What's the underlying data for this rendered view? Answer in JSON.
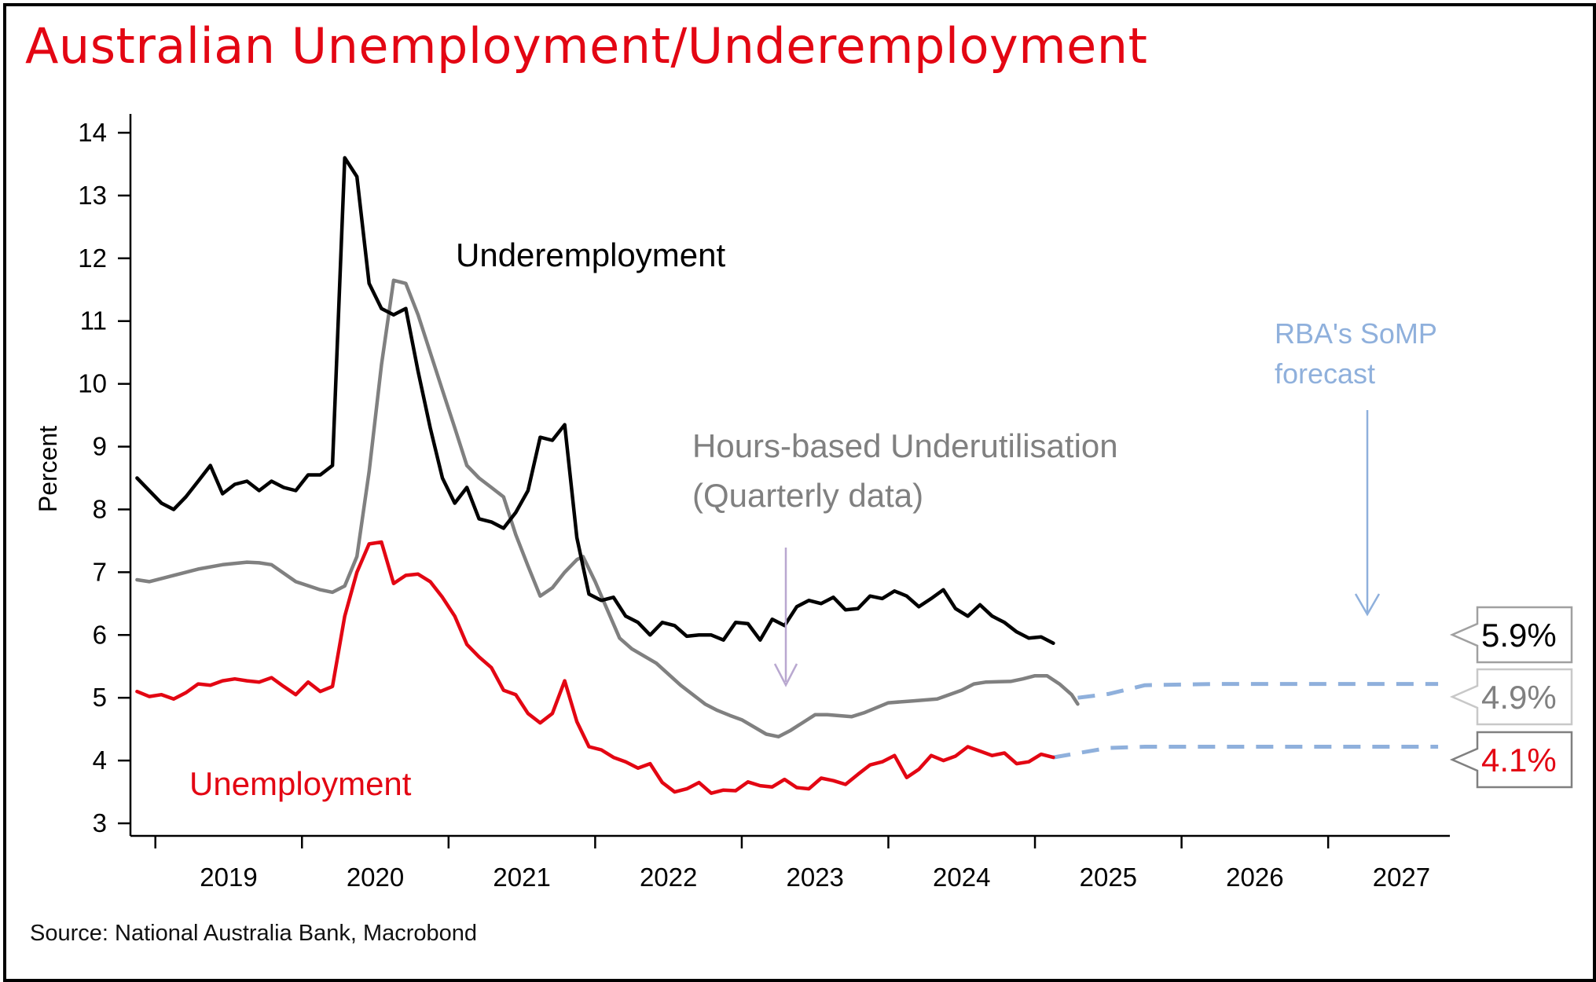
{
  "title": "Australian Unemployment/Underemployment",
  "source": "Source: National Australia Bank, Macrobond",
  "colors": {
    "title": "#e30613",
    "underemployment": "#000000",
    "underutilisation": "#808080",
    "unemployment": "#e30613",
    "forecast": "#8fb0dc",
    "annotation_arrow": "#b9a8d0"
  },
  "chart_data": {
    "type": "line",
    "ylabel": "Percent",
    "xlim": [
      2018.83,
      2027.83
    ],
    "ylim": [
      2.8,
      14.3
    ],
    "y_ticks": [
      3,
      4,
      5,
      6,
      7,
      8,
      9,
      10,
      11,
      12,
      13,
      14
    ],
    "x_ticks": [
      "2019",
      "2020",
      "2021",
      "2022",
      "2023",
      "2024",
      "2025",
      "2026",
      "2027"
    ],
    "grid": false,
    "legend": "none (inline labels)",
    "series": [
      {
        "name": "Underemployment",
        "key": "underemployment",
        "color": "#000000",
        "points": [
          [
            2018.875,
            8.5
          ],
          [
            2018.958,
            8.3
          ],
          [
            2019.042,
            8.1
          ],
          [
            2019.125,
            8.0
          ],
          [
            2019.208,
            8.2
          ],
          [
            2019.292,
            8.45
          ],
          [
            2019.375,
            8.7
          ],
          [
            2019.458,
            8.25
          ],
          [
            2019.542,
            8.4
          ],
          [
            2019.625,
            8.45
          ],
          [
            2019.708,
            8.3
          ],
          [
            2019.792,
            8.45
          ],
          [
            2019.875,
            8.35
          ],
          [
            2019.958,
            8.3
          ],
          [
            2020.042,
            8.55
          ],
          [
            2020.125,
            8.55
          ],
          [
            2020.208,
            8.7
          ],
          [
            2020.292,
            13.6
          ],
          [
            2020.375,
            13.3
          ],
          [
            2020.458,
            11.6
          ],
          [
            2020.542,
            11.2
          ],
          [
            2020.625,
            11.1
          ],
          [
            2020.708,
            11.2
          ],
          [
            2020.792,
            10.2
          ],
          [
            2020.875,
            9.3
          ],
          [
            2020.958,
            8.5
          ],
          [
            2021.042,
            8.1
          ],
          [
            2021.125,
            8.35
          ],
          [
            2021.208,
            7.85
          ],
          [
            2021.292,
            7.8
          ],
          [
            2021.375,
            7.7
          ],
          [
            2021.458,
            7.95
          ],
          [
            2021.542,
            8.3
          ],
          [
            2021.625,
            9.15
          ],
          [
            2021.708,
            9.1
          ],
          [
            2021.792,
            9.35
          ],
          [
            2021.875,
            7.55
          ],
          [
            2021.958,
            6.65
          ],
          [
            2022.042,
            6.55
          ],
          [
            2022.125,
            6.6
          ],
          [
            2022.208,
            6.3
          ],
          [
            2022.292,
            6.2
          ],
          [
            2022.375,
            6.0
          ],
          [
            2022.458,
            6.2
          ],
          [
            2022.542,
            6.15
          ],
          [
            2022.625,
            5.98
          ],
          [
            2022.708,
            6.0
          ],
          [
            2022.792,
            6.0
          ],
          [
            2022.875,
            5.92
          ],
          [
            2022.958,
            6.2
          ],
          [
            2023.042,
            6.18
          ],
          [
            2023.125,
            5.92
          ],
          [
            2023.208,
            6.25
          ],
          [
            2023.292,
            6.15
          ],
          [
            2023.375,
            6.45
          ],
          [
            2023.458,
            6.55
          ],
          [
            2023.542,
            6.5
          ],
          [
            2023.625,
            6.6
          ],
          [
            2023.708,
            6.4
          ],
          [
            2023.792,
            6.42
          ],
          [
            2023.875,
            6.62
          ],
          [
            2023.958,
            6.58
          ],
          [
            2024.042,
            6.7
          ],
          [
            2024.125,
            6.62
          ],
          [
            2024.208,
            6.45
          ],
          [
            2024.292,
            6.58
          ],
          [
            2024.375,
            6.72
          ],
          [
            2024.458,
            6.42
          ],
          [
            2024.542,
            6.3
          ],
          [
            2024.625,
            6.48
          ],
          [
            2024.708,
            6.3
          ],
          [
            2024.792,
            6.2
          ],
          [
            2024.875,
            6.05
          ],
          [
            2024.958,
            5.95
          ],
          [
            2025.042,
            5.97
          ],
          [
            2025.125,
            5.87
          ]
        ]
      },
      {
        "name": "Hours-based Underutilisation (Quarterly data)",
        "key": "underutilisation",
        "color": "#808080",
        "points": [
          [
            2018.875,
            6.88
          ],
          [
            2018.958,
            6.85
          ],
          [
            2019.042,
            6.9
          ],
          [
            2019.125,
            6.95
          ],
          [
            2019.292,
            7.05
          ],
          [
            2019.458,
            7.12
          ],
          [
            2019.625,
            7.16
          ],
          [
            2019.708,
            7.15
          ],
          [
            2019.792,
            7.12
          ],
          [
            2019.958,
            6.85
          ],
          [
            2020.125,
            6.72
          ],
          [
            2020.208,
            6.68
          ],
          [
            2020.292,
            6.78
          ],
          [
            2020.375,
            7.25
          ],
          [
            2020.458,
            8.6
          ],
          [
            2020.542,
            10.3
          ],
          [
            2020.625,
            11.65
          ],
          [
            2020.708,
            11.6
          ],
          [
            2020.792,
            11.1
          ],
          [
            2020.875,
            10.5
          ],
          [
            2020.958,
            9.9
          ],
          [
            2021.042,
            9.3
          ],
          [
            2021.125,
            8.7
          ],
          [
            2021.208,
            8.5
          ],
          [
            2021.292,
            8.35
          ],
          [
            2021.375,
            8.2
          ],
          [
            2021.458,
            7.6
          ],
          [
            2021.542,
            7.1
          ],
          [
            2021.625,
            6.62
          ],
          [
            2021.708,
            6.75
          ],
          [
            2021.792,
            7.0
          ],
          [
            2021.875,
            7.2
          ],
          [
            2021.917,
            7.25
          ],
          [
            2022.0,
            6.85
          ],
          [
            2022.083,
            6.4
          ],
          [
            2022.167,
            5.95
          ],
          [
            2022.25,
            5.78
          ],
          [
            2022.417,
            5.55
          ],
          [
            2022.583,
            5.2
          ],
          [
            2022.75,
            4.9
          ],
          [
            2022.833,
            4.8
          ],
          [
            2022.917,
            4.72
          ],
          [
            2023.0,
            4.65
          ],
          [
            2023.167,
            4.42
          ],
          [
            2023.25,
            4.38
          ],
          [
            2023.333,
            4.48
          ],
          [
            2023.5,
            4.73
          ],
          [
            2023.583,
            4.73
          ],
          [
            2023.75,
            4.7
          ],
          [
            2023.833,
            4.76
          ],
          [
            2024.0,
            4.92
          ],
          [
            2024.167,
            4.95
          ],
          [
            2024.333,
            4.98
          ],
          [
            2024.5,
            5.12
          ],
          [
            2024.583,
            5.22
          ],
          [
            2024.667,
            5.25
          ],
          [
            2024.833,
            5.26
          ],
          [
            2024.917,
            5.3
          ],
          [
            2025.0,
            5.35
          ],
          [
            2025.083,
            5.35
          ],
          [
            2025.167,
            5.22
          ],
          [
            2025.25,
            5.05
          ],
          [
            2025.292,
            4.9
          ]
        ]
      },
      {
        "name": "Unemployment",
        "key": "unemployment",
        "color": "#e30613",
        "points": [
          [
            2018.875,
            5.1
          ],
          [
            2018.958,
            5.02
          ],
          [
            2019.042,
            5.05
          ],
          [
            2019.125,
            4.98
          ],
          [
            2019.208,
            5.08
          ],
          [
            2019.292,
            5.22
          ],
          [
            2019.375,
            5.2
          ],
          [
            2019.458,
            5.27
          ],
          [
            2019.542,
            5.3
          ],
          [
            2019.625,
            5.27
          ],
          [
            2019.708,
            5.25
          ],
          [
            2019.792,
            5.32
          ],
          [
            2019.875,
            5.18
          ],
          [
            2019.958,
            5.05
          ],
          [
            2020.042,
            5.25
          ],
          [
            2020.125,
            5.1
          ],
          [
            2020.208,
            5.18
          ],
          [
            2020.292,
            6.3
          ],
          [
            2020.375,
            7.0
          ],
          [
            2020.458,
            7.45
          ],
          [
            2020.542,
            7.48
          ],
          [
            2020.625,
            6.82
          ],
          [
            2020.708,
            6.95
          ],
          [
            2020.792,
            6.97
          ],
          [
            2020.875,
            6.85
          ],
          [
            2020.958,
            6.6
          ],
          [
            2021.042,
            6.3
          ],
          [
            2021.125,
            5.85
          ],
          [
            2021.208,
            5.65
          ],
          [
            2021.292,
            5.48
          ],
          [
            2021.375,
            5.12
          ],
          [
            2021.458,
            5.05
          ],
          [
            2021.542,
            4.75
          ],
          [
            2021.625,
            4.6
          ],
          [
            2021.708,
            4.75
          ],
          [
            2021.792,
            5.27
          ],
          [
            2021.875,
            4.62
          ],
          [
            2021.958,
            4.22
          ],
          [
            2022.042,
            4.17
          ],
          [
            2022.125,
            4.05
          ],
          [
            2022.208,
            3.98
          ],
          [
            2022.292,
            3.88
          ],
          [
            2022.375,
            3.95
          ],
          [
            2022.458,
            3.65
          ],
          [
            2022.542,
            3.5
          ],
          [
            2022.625,
            3.55
          ],
          [
            2022.708,
            3.65
          ],
          [
            2022.792,
            3.48
          ],
          [
            2022.875,
            3.53
          ],
          [
            2022.958,
            3.52
          ],
          [
            2023.042,
            3.66
          ],
          [
            2023.125,
            3.6
          ],
          [
            2023.208,
            3.58
          ],
          [
            2023.292,
            3.7
          ],
          [
            2023.375,
            3.57
          ],
          [
            2023.458,
            3.55
          ],
          [
            2023.542,
            3.72
          ],
          [
            2023.625,
            3.68
          ],
          [
            2023.708,
            3.62
          ],
          [
            2023.792,
            3.78
          ],
          [
            2023.875,
            3.93
          ],
          [
            2023.958,
            3.98
          ],
          [
            2024.042,
            4.08
          ],
          [
            2024.125,
            3.73
          ],
          [
            2024.208,
            3.86
          ],
          [
            2024.292,
            4.08
          ],
          [
            2024.375,
            4.0
          ],
          [
            2024.458,
            4.07
          ],
          [
            2024.542,
            4.22
          ],
          [
            2024.625,
            4.15
          ],
          [
            2024.708,
            4.08
          ],
          [
            2024.792,
            4.12
          ],
          [
            2024.875,
            3.95
          ],
          [
            2024.958,
            3.98
          ],
          [
            2025.042,
            4.1
          ],
          [
            2025.125,
            4.05
          ]
        ]
      },
      {
        "name": "RBA's SoMP forecast (Unemployment)",
        "key": "forecast_unemployment",
        "color": "#8fb0dc",
        "dashed": true,
        "points": [
          [
            2025.125,
            4.05
          ],
          [
            2025.5,
            4.2
          ],
          [
            2025.75,
            4.22
          ],
          [
            2026.25,
            4.22
          ],
          [
            2027.75,
            4.22
          ]
        ]
      },
      {
        "name": "RBA's SoMP forecast (Underutilisation)",
        "key": "forecast_underutilisation",
        "color": "#8fb0dc",
        "dashed": true,
        "points": [
          [
            2025.292,
            5.0
          ],
          [
            2025.5,
            5.06
          ],
          [
            2025.75,
            5.2
          ],
          [
            2026.25,
            5.22
          ],
          [
            2027.75,
            5.22
          ]
        ]
      }
    ],
    "annotations": {
      "underemployment": "Underemployment",
      "underutilisation_line1": "Hours-based Underutilisation",
      "underutilisation_line2": "(Quarterly data)",
      "unemployment": "Unemployment",
      "forecast_line1": "RBA's SoMP",
      "forecast_line2": "forecast"
    },
    "end_labels": [
      {
        "text": "5.9%",
        "series": "underemployment",
        "value": 5.9,
        "text_color": "#000000",
        "border_color": "#a0a0a0"
      },
      {
        "text": "4.9%",
        "series": "underutilisation",
        "value": 4.9,
        "text_color": "#808080",
        "border_color": "#c8c8c8"
      },
      {
        "text": "4.1%",
        "series": "unemployment",
        "value": 4.1,
        "text_color": "#e30613",
        "border_color": "#808080"
      }
    ]
  }
}
